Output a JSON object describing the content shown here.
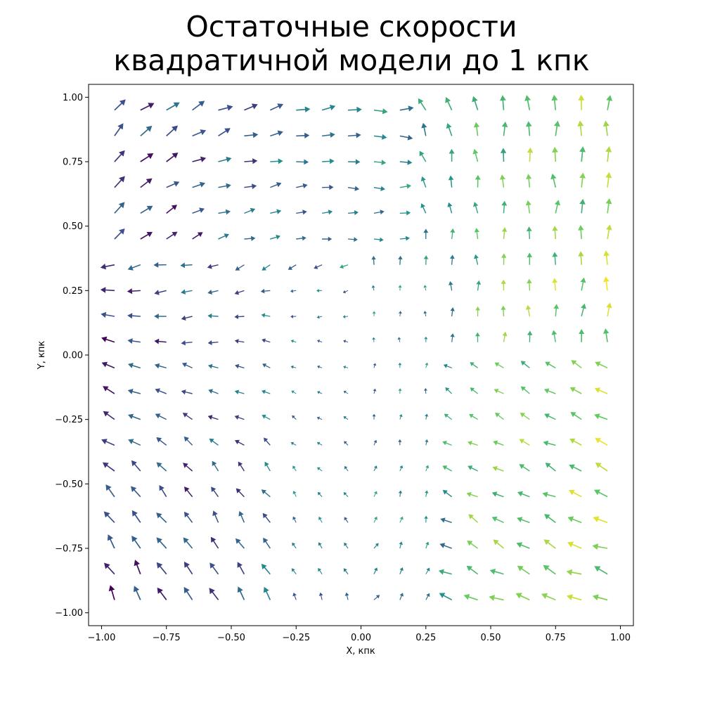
{
  "chart_data": {
    "type": "quiver",
    "title_lines": [
      "Остаточные скорости",
      "квадратичной модели до 1 кпк"
    ],
    "xlabel": "X, кпк",
    "ylabel": "Y, кпк",
    "xlim": [
      -1.05,
      1.05
    ],
    "ylim": [
      -1.05,
      1.05
    ],
    "xticks": [
      -1.0,
      -0.75,
      -0.5,
      -0.25,
      0.0,
      0.25,
      0.5,
      0.75,
      1.0
    ],
    "yticks": [
      -1.0,
      -0.75,
      -0.5,
      -0.25,
      0.0,
      0.25,
      0.5,
      0.75,
      1.0
    ],
    "xtick_labels": [
      "−1.00",
      "−0.75",
      "−0.50",
      "−0.25",
      "0.00",
      "0.25",
      "0.50",
      "0.75",
      "1.00"
    ],
    "ytick_labels": [
      "−1.00",
      "−0.75",
      "−0.50",
      "−0.25",
      "0.00",
      "0.25",
      "0.50",
      "0.75",
      "1.00"
    ],
    "grid": false,
    "colormap": "viridis",
    "grid_points": {
      "x_start": -0.95,
      "x_step": 0.1,
      "count_x": 20,
      "y_start": -0.95,
      "y_step": 0.1,
      "count_y": 20
    },
    "color_stops": [
      "#440154",
      "#3b528b",
      "#21918c",
      "#5ec962",
      "#fde725"
    ]
  }
}
